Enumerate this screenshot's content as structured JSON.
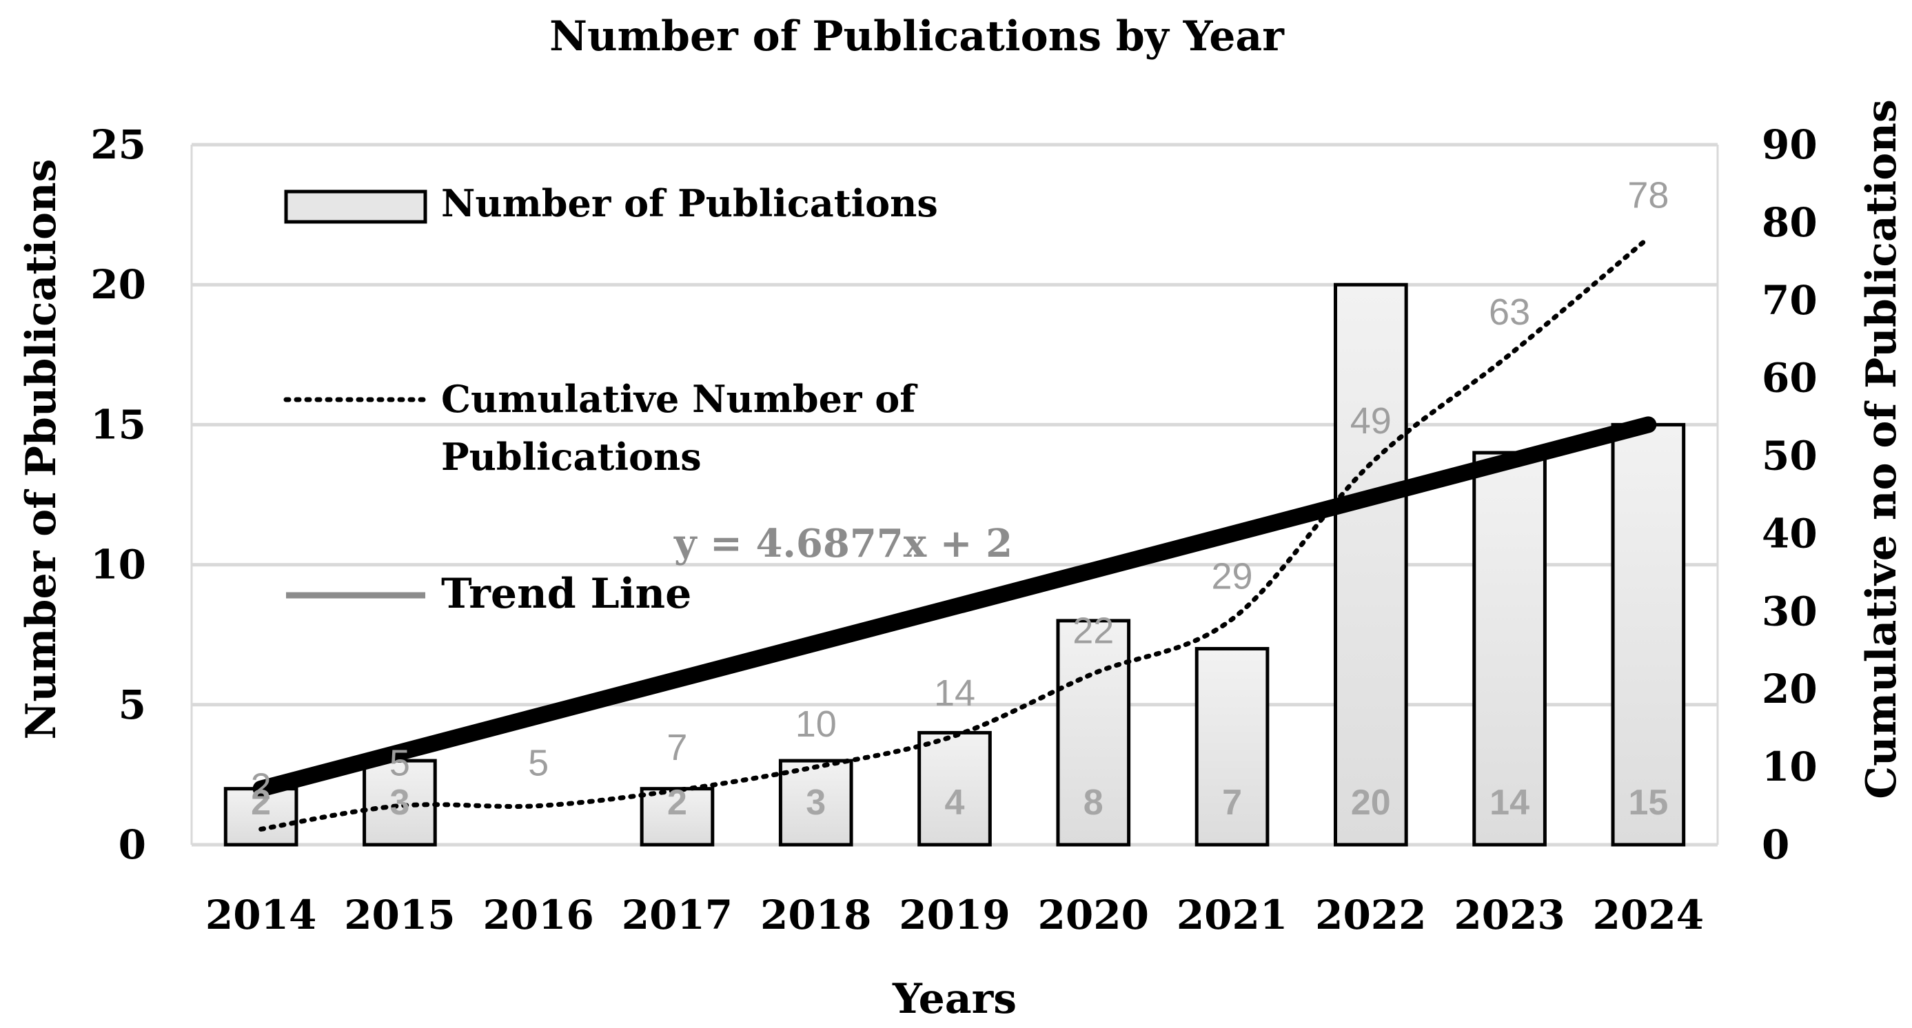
{
  "chart_data": {
    "type": "bar",
    "title": "Number of Publications by Year",
    "xlabel": "Years",
    "ylabel": "Number of Pbublications",
    "y2label": "Cumulative no of Publications",
    "categories": [
      "2014",
      "2015",
      "2016",
      "2017",
      "2018",
      "2019",
      "2020",
      "2021",
      "2022",
      "2023",
      "2024"
    ],
    "ylim": [
      0,
      25
    ],
    "yticks": [
      0,
      5,
      10,
      15,
      20,
      25
    ],
    "y2lim": [
      0,
      90
    ],
    "y2ticks": [
      0,
      10,
      20,
      30,
      40,
      50,
      60,
      70,
      80,
      90
    ],
    "grid": true,
    "legend_position": "top-left",
    "series": [
      {
        "name": "Number of Publications",
        "type": "bar",
        "axis": "left",
        "values": [
          2,
          3,
          null,
          2,
          3,
          4,
          8,
          7,
          20,
          14,
          15
        ],
        "labels": [
          "2",
          "3",
          "",
          "2",
          "3",
          "4",
          "8",
          "7",
          "20",
          "14",
          "15"
        ],
        "color": "#e6e6e6"
      },
      {
        "name": "Cumulative Number of Publications",
        "type": "line",
        "style": "dotted",
        "axis": "right",
        "values": [
          2,
          5,
          5,
          7,
          10,
          14,
          22,
          29,
          49,
          63,
          78
        ],
        "labels": [
          "2",
          "5",
          "5",
          "7",
          "10",
          "14",
          "22",
          "29",
          "49",
          "63",
          "78"
        ],
        "color": "#000000"
      },
      {
        "name": "Trend Line",
        "type": "trendline",
        "axis": "left",
        "start": [
          2014,
          2
        ],
        "end": [
          2024,
          15
        ],
        "color": "#000000"
      }
    ],
    "annotations": [
      {
        "text": "y = 4.6877x + 2",
        "color": "#8c8c8c"
      }
    ],
    "legend": {
      "entries": [
        "Number of Publications",
        "Cumulative Number of",
        "Publications",
        "Trend Line"
      ],
      "trend_swatch_color": "#8c8c8c"
    },
    "colors": {
      "grid": "#d9d9d9",
      "cumulative_label": "#9e9e9e",
      "bar_label": "#a6a6a6",
      "bar_fill": "#e6e6e6"
    }
  }
}
